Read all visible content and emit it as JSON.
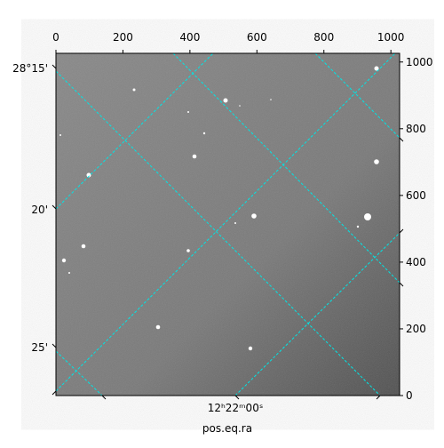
{
  "chart_data": {
    "type": "image",
    "xlabel": "pos.eq.ra",
    "xlim": [
      0,
      1026
    ],
    "xticks": [
      0,
      200,
      400,
      600,
      800,
      1000
    ],
    "ylim": [
      0,
      1026
    ],
    "yticks": [
      0,
      200,
      400,
      600,
      800,
      1000
    ],
    "dec_labels": [
      "28°15'",
      "20'",
      "25'"
    ],
    "ra_labels": [
      "12ʰ22ᵐ00ˢ"
    ],
    "grid_color": "#00e5e5"
  }
}
